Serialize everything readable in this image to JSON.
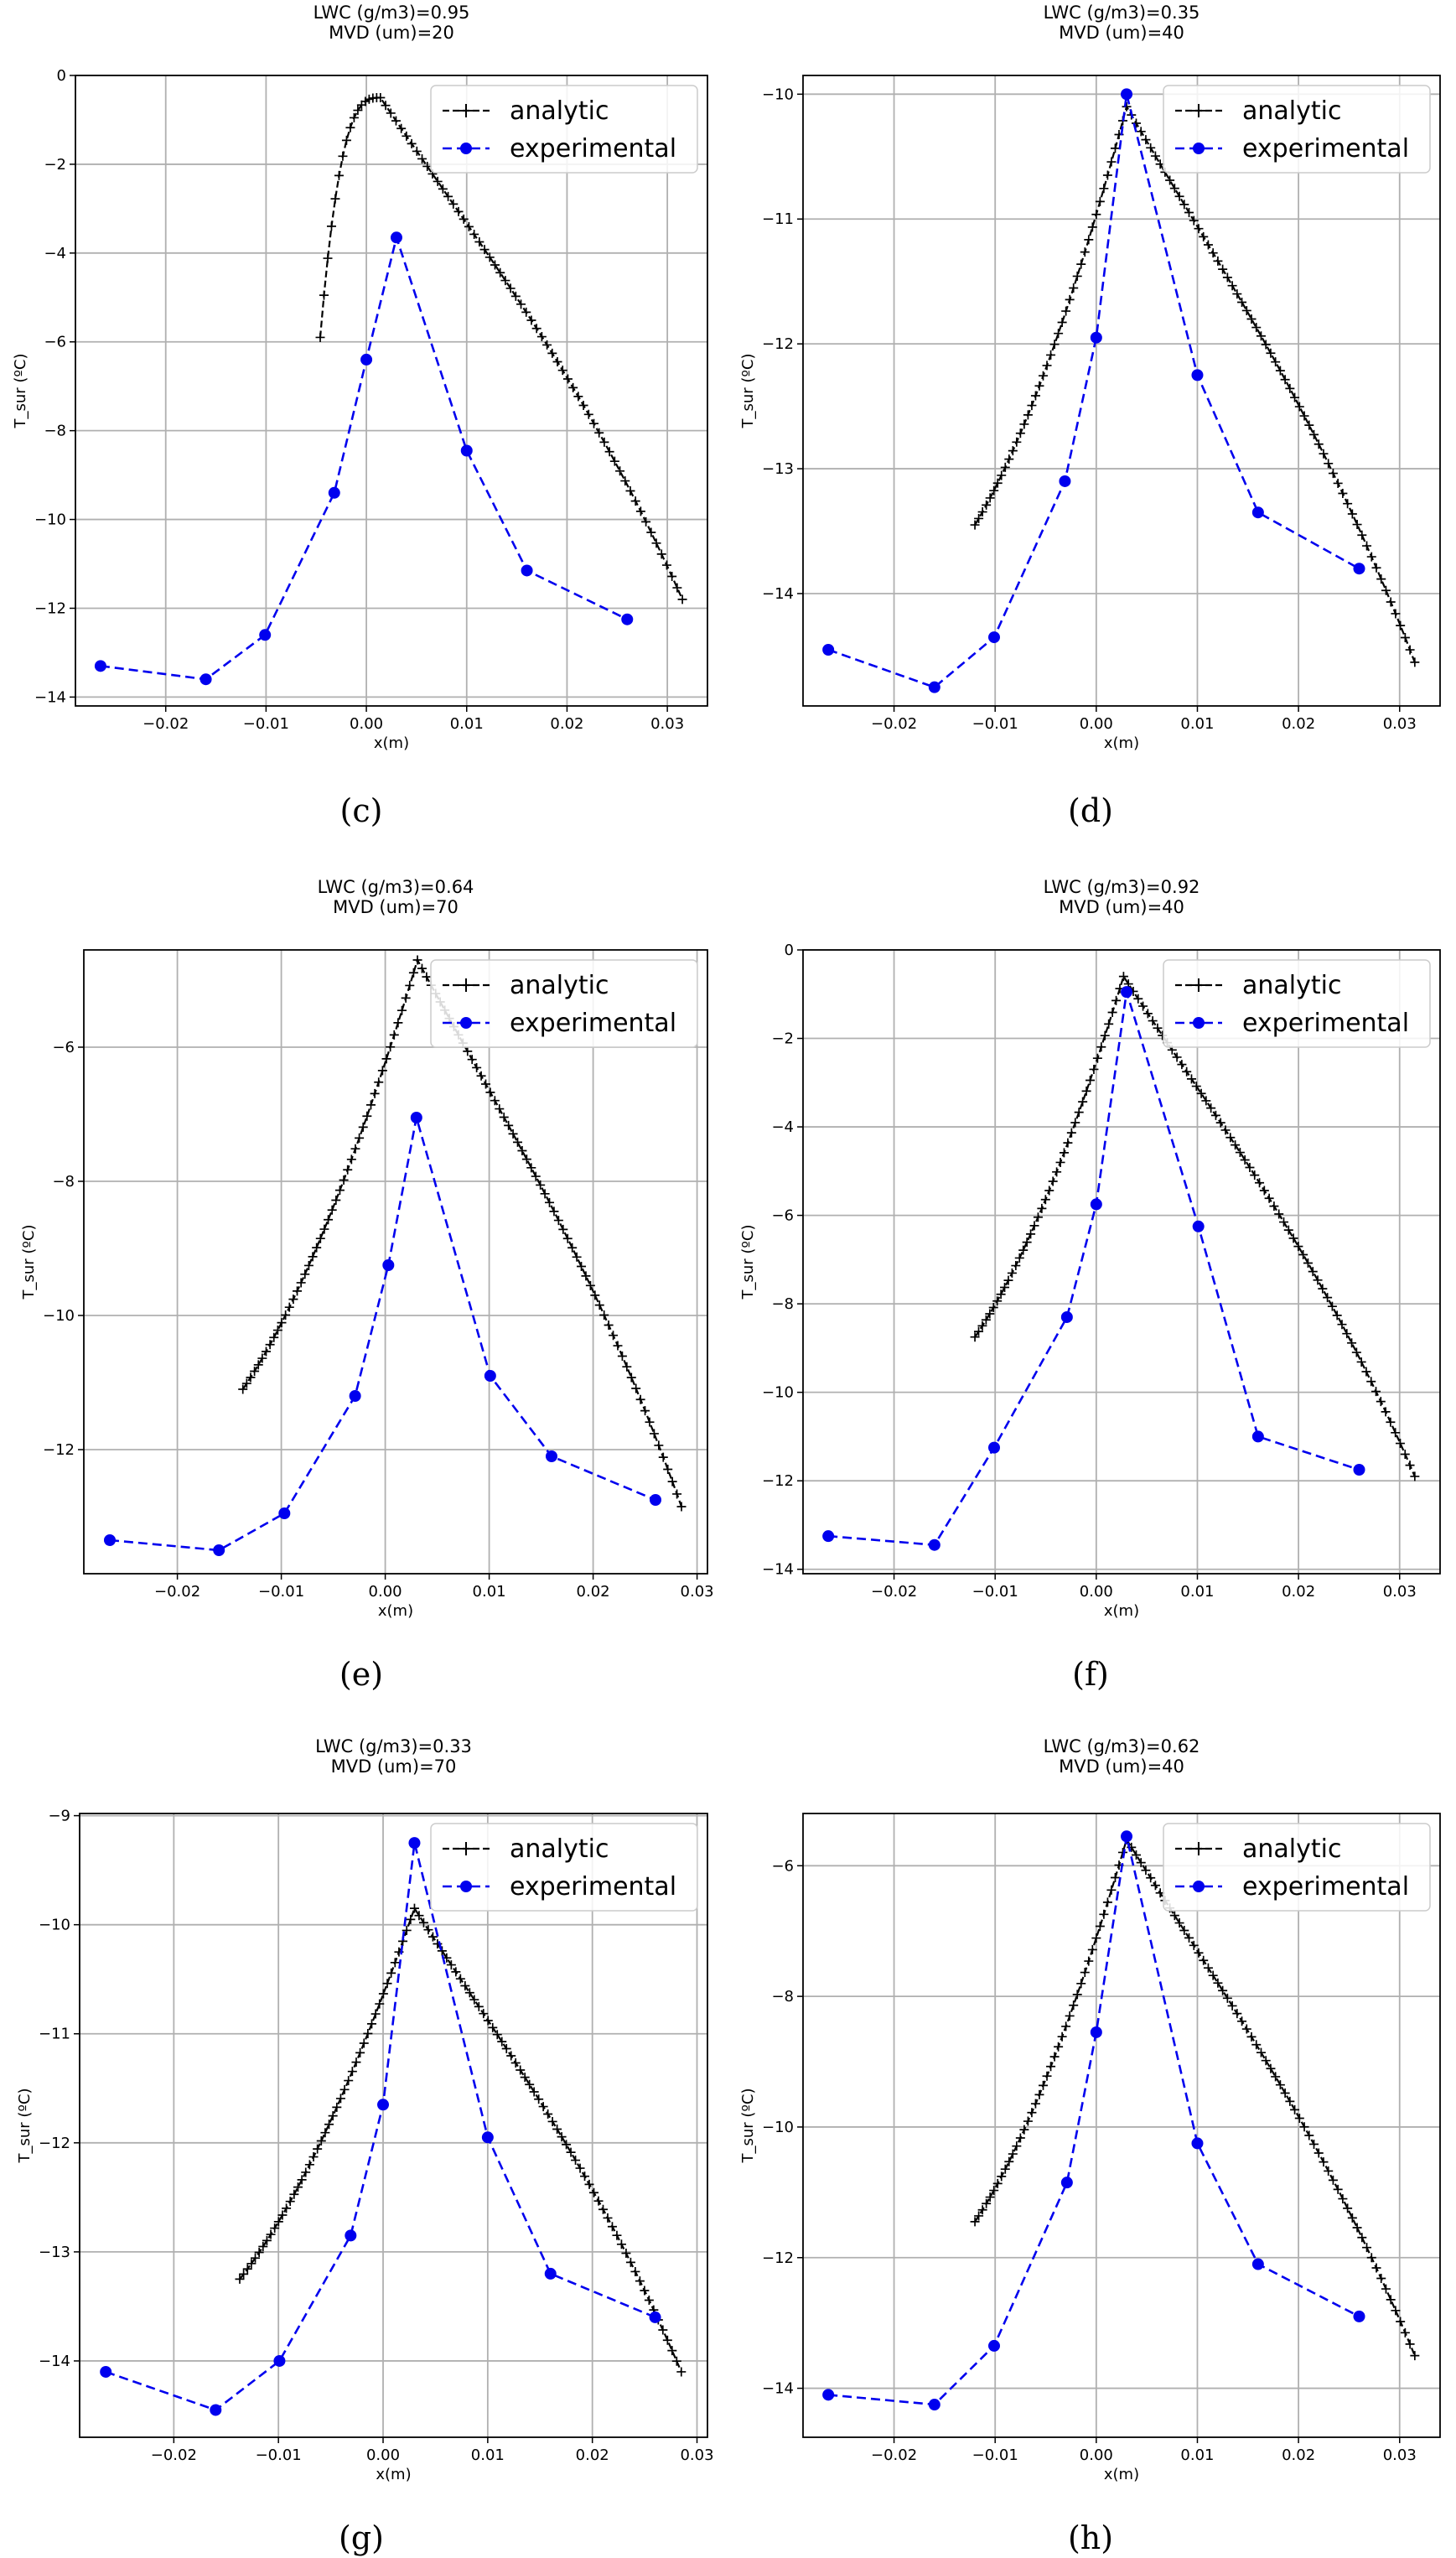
{
  "colors": {
    "analytic": "#000000",
    "experimental": "#0000ee",
    "grid": "#b0b0b0"
  },
  "chart_data": [
    {
      "type": "line",
      "caption": "(c)",
      "title_line1": "LWC (g/m3)=0.95",
      "title_line2": "MVD (um)=20",
      "xlabel": "x(m)",
      "ylabel": "T_sur (ºC)",
      "xlim": [
        -0.029,
        0.034
      ],
      "ylim": [
        -14.2,
        0
      ],
      "xticks": [
        -0.02,
        -0.01,
        0.0,
        0.01,
        0.02,
        0.03
      ],
      "xtick_labels": [
        "−0.02",
        "−0.01",
        "0.00",
        "0.01",
        "0.02",
        "0.03"
      ],
      "yticks": [
        0,
        -2,
        -4,
        -6,
        -8,
        -10,
        -12,
        -14
      ],
      "ytick_labels": [
        "0",
        "−2",
        "−4",
        "−6",
        "−8",
        "−10",
        "−12",
        "−14"
      ],
      "legend_labels": [
        "analytic",
        "experimental"
      ],
      "legend_position": "top-right",
      "analytic": {
        "start_x": -0.0046,
        "start_y": -5.9,
        "peak_x": 0.0014,
        "peak_y": -0.5,
        "end_x": 0.0315,
        "end_y": -11.8,
        "left_shape": [
          1,
          1
        ],
        "right_shape": [
          0.3,
          0.55
        ],
        "n_left": 16,
        "n_right": 58
      },
      "experimental": {
        "x": [
          -0.0265,
          -0.016,
          -0.0101,
          -0.0032,
          0.0,
          0.003,
          0.01,
          0.016,
          0.026
        ],
        "y": [
          -13.3,
          -13.6,
          -12.6,
          -9.4,
          -6.4,
          -3.65,
          -8.45,
          -11.15,
          -12.25
        ]
      }
    },
    {
      "type": "line",
      "caption": "(d)",
      "title_line1": "LWC (g/m3)=0.35",
      "title_line2": "MVD (um)=40",
      "xlabel": "x(m)",
      "ylabel": "T_sur (ºC)",
      "xlim": [
        -0.029,
        0.034
      ],
      "ylim": [
        -14.9,
        -9.85
      ],
      "xticks": [
        -0.02,
        -0.01,
        0.0,
        0.01,
        0.02,
        0.03
      ],
      "xtick_labels": [
        "−0.02",
        "−0.01",
        "0.00",
        "0.01",
        "0.02",
        "0.03"
      ],
      "yticks": [
        -10,
        -11,
        -12,
        -13,
        -14
      ],
      "ytick_labels": [
        "−10",
        "−11",
        "−12",
        "−13",
        "−14"
      ],
      "legend_labels": [
        "analytic",
        "experimental"
      ],
      "legend_position": "top-right",
      "analytic": {
        "start_x": -0.012,
        "start_y": -13.45,
        "peak_x": 0.003,
        "peak_y": -10.1,
        "end_x": 0.0315,
        "end_y": -14.55,
        "left_shape": [
          0.2,
          0.55
        ],
        "right_shape": [
          0.3,
          0.55
        ],
        "n_left": 40,
        "n_right": 60
      },
      "experimental": {
        "x": [
          -0.0265,
          -0.016,
          -0.0101,
          -0.0031,
          0.0,
          0.003,
          0.01,
          0.016,
          0.026
        ],
        "y": [
          -14.45,
          -14.75,
          -14.35,
          -13.1,
          -11.95,
          -10.0,
          -12.25,
          -13.35,
          -13.8
        ]
      }
    },
    {
      "type": "line",
      "caption": "(e)",
      "title_line1": "LWC (g/m3)=0.64",
      "title_line2": "MVD (um)=70",
      "xlabel": "x(m)",
      "ylabel": "T_sur (ºC)",
      "xlim": [
        -0.029,
        0.031
      ],
      "ylim": [
        -13.85,
        -4.55
      ],
      "xticks": [
        -0.02,
        -0.01,
        0.0,
        0.01,
        0.02,
        0.03
      ],
      "xtick_labels": [
        "−0.02",
        "−0.01",
        "0.00",
        "0.01",
        "0.02",
        "0.03"
      ],
      "yticks": [
        -6,
        -8,
        -10,
        -12
      ],
      "ytick_labels": [
        "−6",
        "−8",
        "−10",
        "−12"
      ],
      "legend_labels": [
        "analytic",
        "experimental"
      ],
      "legend_position": "top-right",
      "analytic": {
        "start_x": -0.0137,
        "start_y": -11.1,
        "peak_x": 0.0031,
        "peak_y": -4.7,
        "end_x": 0.0285,
        "end_y": -12.85,
        "left_shape": [
          0.2,
          0.55
        ],
        "right_shape": [
          0.3,
          0.55
        ],
        "n_left": 45,
        "n_right": 58
      },
      "experimental": {
        "x": [
          -0.0265,
          -0.016,
          -0.0097,
          -0.0029,
          0.0003,
          0.003,
          0.0101,
          0.016,
          0.026
        ],
        "y": [
          -13.35,
          -13.5,
          -12.95,
          -11.2,
          -9.25,
          -7.05,
          -10.9,
          -12.1,
          -12.75
        ]
      }
    },
    {
      "type": "line",
      "caption": "(f)",
      "title_line1": "LWC (g/m3)=0.92",
      "title_line2": "MVD (um)=40",
      "xlabel": "x(m)",
      "ylabel": "T_sur (ºC)",
      "xlim": [
        -0.029,
        0.034
      ],
      "ylim": [
        -14.1,
        0
      ],
      "xticks": [
        -0.02,
        -0.01,
        0.0,
        0.01,
        0.02,
        0.03
      ],
      "xtick_labels": [
        "−0.02",
        "−0.01",
        "0.00",
        "0.01",
        "0.02",
        "0.03"
      ],
      "yticks": [
        0,
        -2,
        -4,
        -6,
        -8,
        -10,
        -12,
        -14
      ],
      "ytick_labels": [
        "0",
        "−2",
        "−4",
        "−6",
        "−8",
        "−10",
        "−12",
        "−14"
      ],
      "legend_labels": [
        "analytic",
        "experimental"
      ],
      "legend_position": "top-right",
      "analytic": {
        "start_x": -0.012,
        "start_y": -8.75,
        "peak_x": 0.0027,
        "peak_y": -0.6,
        "end_x": 0.0315,
        "end_y": -11.9,
        "left_shape": [
          0.2,
          0.55
        ],
        "right_shape": [
          0.3,
          0.55
        ],
        "n_left": 40,
        "n_right": 60
      },
      "experimental": {
        "x": [
          -0.0265,
          -0.016,
          -0.0101,
          -0.0029,
          0.0,
          0.003,
          0.0101,
          0.016,
          0.026
        ],
        "y": [
          -13.25,
          -13.45,
          -11.25,
          -8.3,
          -5.75,
          -0.95,
          -6.25,
          -11.0,
          -11.75
        ]
      }
    },
    {
      "type": "line",
      "caption": "(g)",
      "title_line1": "LWC (g/m3)=0.33",
      "title_line2": "MVD (um)=70",
      "xlabel": "x(m)",
      "ylabel": "T_sur (ºC)",
      "xlim": [
        -0.029,
        0.031
      ],
      "ylim": [
        -14.7,
        -8.98
      ],
      "xticks": [
        -0.02,
        -0.01,
        0.0,
        0.01,
        0.02,
        0.03
      ],
      "xtick_labels": [
        "−0.02",
        "−0.01",
        "0.00",
        "0.01",
        "0.02",
        "0.03"
      ],
      "yticks": [
        -9,
        -10,
        -11,
        -12,
        -13,
        -14
      ],
      "ytick_labels": [
        "−9",
        "−10",
        "−11",
        "−12",
        "−13",
        "−14"
      ],
      "legend_labels": [
        "analytic",
        "experimental"
      ],
      "legend_position": "top-right",
      "analytic": {
        "start_x": -0.0137,
        "start_y": -13.25,
        "peak_x": 0.003,
        "peak_y": -9.85,
        "end_x": 0.0285,
        "end_y": -14.1,
        "left_shape": [
          0.2,
          0.55
        ],
        "right_shape": [
          0.3,
          0.55
        ],
        "n_left": 45,
        "n_right": 58
      },
      "experimental": {
        "x": [
          -0.0265,
          -0.016,
          -0.0099,
          -0.0031,
          0.0,
          0.003,
          0.01,
          0.016,
          0.026
        ],
        "y": [
          -14.1,
          -14.45,
          -14.0,
          -12.85,
          -11.65,
          -9.25,
          -11.95,
          -13.2,
          -13.6
        ]
      }
    },
    {
      "type": "line",
      "caption": "(h)",
      "title_line1": "LWC (g/m3)=0.62",
      "title_line2": "MVD (um)=40",
      "xlabel": "x(m)",
      "ylabel": "T_sur (ºC)",
      "xlim": [
        -0.029,
        0.034
      ],
      "ylim": [
        -14.75,
        -5.2
      ],
      "xticks": [
        -0.02,
        -0.01,
        0.0,
        0.01,
        0.02,
        0.03
      ],
      "xtick_labels": [
        "−0.02",
        "−0.01",
        "0.00",
        "0.01",
        "0.02",
        "0.03"
      ],
      "yticks": [
        -6,
        -8,
        -10,
        -12,
        -14
      ],
      "ytick_labels": [
        "−6",
        "−8",
        "−10",
        "−12",
        "−14"
      ],
      "legend_labels": [
        "analytic",
        "experimental"
      ],
      "legend_position": "top-right",
      "analytic": {
        "start_x": -0.012,
        "start_y": -11.45,
        "peak_x": 0.003,
        "peak_y": -5.6,
        "end_x": 0.0315,
        "end_y": -13.5,
        "left_shape": [
          0.2,
          0.55
        ],
        "right_shape": [
          0.3,
          0.55
        ],
        "n_left": 40,
        "n_right": 60
      },
      "experimental": {
        "x": [
          -0.0265,
          -0.016,
          -0.0101,
          -0.0029,
          0.0,
          0.003,
          0.01,
          0.016,
          0.026
        ],
        "y": [
          -14.1,
          -14.25,
          -13.35,
          -10.85,
          -8.55,
          -5.55,
          -10.25,
          -12.1,
          -12.9
        ]
      }
    }
  ]
}
